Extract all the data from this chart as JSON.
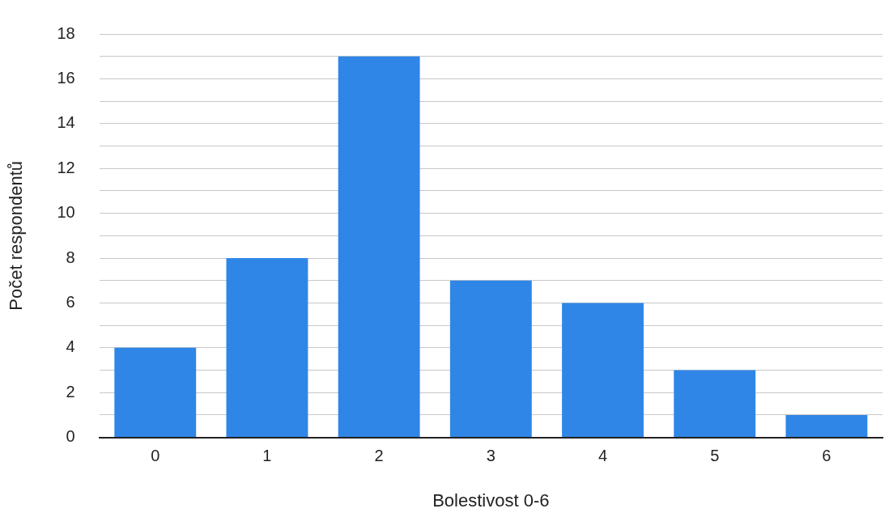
{
  "chart_data": {
    "type": "bar",
    "xlabel": "Bolestivost 0-6",
    "ylabel": "Počet respondentů",
    "categories": [
      "0",
      "1",
      "2",
      "3",
      "4",
      "5",
      "6"
    ],
    "values": [
      4,
      8,
      17,
      7,
      6,
      3,
      1
    ],
    "color": "#2f86e6",
    "ylim": [
      0,
      18
    ],
    "yticks": [
      0,
      {
        "value": 1,
        "label": null
      },
      2,
      {
        "value": 3,
        "label": null
      },
      4,
      {
        "value": 5,
        "label": null
      },
      6,
      {
        "value": 7,
        "label": null
      },
      8,
      {
        "value": 9,
        "label": null
      },
      10,
      {
        "value": 11,
        "label": null
      },
      12,
      {
        "value": 13,
        "label": null
      },
      14,
      {
        "value": 15,
        "label": null
      },
      16,
      {
        "value": 17,
        "label": null
      },
      18
    ],
    "grid": "y",
    "legend": false
  }
}
